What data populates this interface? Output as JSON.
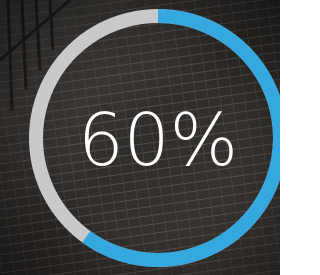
{
  "chart_data": {
    "type": "progress",
    "values": [
      60
    ],
    "value_labels": [
      "60%"
    ],
    "ylim": [
      0,
      100
    ],
    "color": "#35a9df",
    "track_color": "#c9c9c9"
  }
}
